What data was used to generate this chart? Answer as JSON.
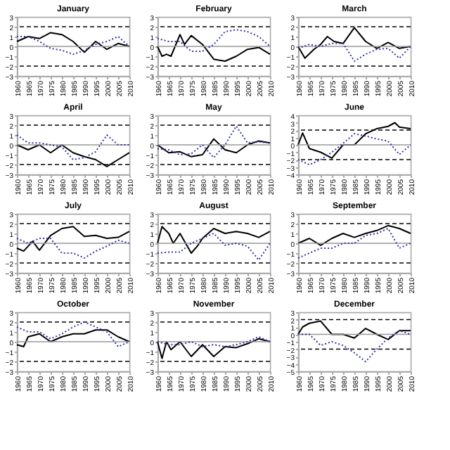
{
  "chart_data": [
    {
      "type": "line",
      "title": "January",
      "xlim": [
        1960,
        2010
      ],
      "xticks": [
        1960,
        1965,
        1970,
        1975,
        1980,
        1985,
        1990,
        1995,
        2000,
        2005,
        2010
      ],
      "ylim": [
        -3,
        3
      ],
      "yticks": [
        -3,
        -2,
        -1,
        0,
        1,
        2,
        3
      ],
      "grid": false,
      "legend": false,
      "ref_lines": [
        {
          "axis": "y",
          "value": 2,
          "color": "#000000",
          "line_style": "dashed"
        },
        {
          "axis": "y",
          "value": -2,
          "color": "#000000",
          "line_style": "dashed"
        },
        {
          "axis": "y",
          "value": 0,
          "color": "#999999",
          "line_style": "solid"
        }
      ],
      "series": [
        {
          "color": "#000000",
          "line_style": "solid",
          "x": [
            1960,
            1965,
            1970,
            1975,
            1980,
            1985,
            1990,
            1995,
            2000,
            2005,
            2010
          ],
          "values": [
            0.5,
            1,
            0.8,
            1.4,
            1.2,
            0.5,
            -0.6,
            0.5,
            -0.3,
            0.3,
            0
          ]
        },
        {
          "color": "#3333aa",
          "line_style": "dotted",
          "x": [
            1960,
            1965,
            1970,
            1975,
            1980,
            1985,
            1990,
            1995,
            2000,
            2005,
            2010
          ],
          "values": [
            1,
            1,
            0.5,
            -0.2,
            -0.4,
            -0.8,
            -0.4,
            0.2,
            0.5,
            1,
            0
          ]
        }
      ]
    },
    {
      "type": "line",
      "title": "February",
      "xlim": [
        1960,
        2010
      ],
      "xticks": [
        1960,
        1965,
        1970,
        1975,
        1980,
        1985,
        1990,
        1995,
        2000,
        2005,
        2010
      ],
      "ylim": [
        -3,
        3
      ],
      "yticks": [
        -3,
        -2,
        -1,
        0,
        1,
        2,
        3
      ],
      "grid": false,
      "legend": false,
      "ref_lines": [
        {
          "axis": "y",
          "value": 2,
          "color": "#000000",
          "line_style": "dashed"
        },
        {
          "axis": "y",
          "value": -2,
          "color": "#000000",
          "line_style": "dashed"
        },
        {
          "axis": "y",
          "value": 0,
          "color": "#999999",
          "line_style": "solid"
        }
      ],
      "series": [
        {
          "color": "#000000",
          "line_style": "solid",
          "x": [
            1960,
            1962,
            1964,
            1966,
            1970,
            1972,
            1975,
            1980,
            1985,
            1990,
            1995,
            2000,
            2005,
            2010
          ],
          "values": [
            0,
            -1,
            -0.8,
            -1,
            1.2,
            0.2,
            1.1,
            0.2,
            -1.3,
            -1.5,
            -1,
            -0.3,
            -0.1,
            -0.8
          ]
        },
        {
          "color": "#3333aa",
          "line_style": "dotted",
          "x": [
            1960,
            1965,
            1970,
            1975,
            1980,
            1985,
            1990,
            1995,
            2000,
            2005,
            2010
          ],
          "values": [
            0.8,
            0.5,
            0.5,
            -0.5,
            -0.5,
            0.2,
            1.5,
            1.7,
            1.5,
            1,
            0
          ]
        }
      ]
    },
    {
      "type": "line",
      "title": "March",
      "xlim": [
        1960,
        2010
      ],
      "xticks": [
        1960,
        1965,
        1970,
        1975,
        1980,
        1985,
        1990,
        1995,
        2000,
        2005,
        2010
      ],
      "ylim": [
        -3,
        3
      ],
      "yticks": [
        -3,
        -2,
        -1,
        0,
        1,
        2,
        3
      ],
      "grid": false,
      "legend": false,
      "ref_lines": [
        {
          "axis": "y",
          "value": 2,
          "color": "#000000",
          "line_style": "dashed"
        },
        {
          "axis": "y",
          "value": -2,
          "color": "#000000",
          "line_style": "dashed"
        },
        {
          "axis": "y",
          "value": 0,
          "color": "#999999",
          "line_style": "solid"
        }
      ],
      "series": [
        {
          "color": "#000000",
          "line_style": "solid",
          "x": [
            1960,
            1963,
            1967,
            1970,
            1973,
            1976,
            1980,
            1985,
            1990,
            1995,
            2000,
            2005,
            2010
          ],
          "values": [
            0,
            -1.2,
            -0.3,
            0.2,
            1,
            0.5,
            0.3,
            1.9,
            0.5,
            -0.2,
            0.4,
            -0.2,
            0
          ]
        },
        {
          "color": "#3333aa",
          "line_style": "dotted",
          "x": [
            1960,
            1965,
            1970,
            1975,
            1980,
            1985,
            1990,
            1995,
            2000,
            2005,
            2010
          ],
          "values": [
            -0.2,
            0.2,
            0,
            0.3,
            0.3,
            -1.5,
            -0.8,
            -0.3,
            -0.2,
            -1.2,
            0
          ]
        }
      ]
    },
    {
      "type": "line",
      "title": "April",
      "xlim": [
        1960,
        2010
      ],
      "xticks": [
        1960,
        1965,
        1970,
        1975,
        1980,
        1985,
        1990,
        1995,
        2000,
        2005,
        2010
      ],
      "ylim": [
        -3,
        3
      ],
      "yticks": [
        -3,
        -2,
        -1,
        0,
        1,
        2,
        3
      ],
      "grid": false,
      "legend": false,
      "ref_lines": [
        {
          "axis": "y",
          "value": 2,
          "color": "#000000",
          "line_style": "dashed"
        },
        {
          "axis": "y",
          "value": -2,
          "color": "#000000",
          "line_style": "dashed"
        },
        {
          "axis": "y",
          "value": 0,
          "color": "#999999",
          "line_style": "solid"
        }
      ],
      "series": [
        {
          "color": "#000000",
          "line_style": "solid",
          "x": [
            1960,
            1965,
            1970,
            1975,
            1980,
            1985,
            1990,
            1995,
            2000,
            2005,
            2010
          ],
          "values": [
            0,
            -0.5,
            0,
            -0.8,
            0,
            -0.8,
            -1.2,
            -1.5,
            -2.2,
            -1.5,
            -0.8
          ]
        },
        {
          "color": "#3333aa",
          "line_style": "dotted",
          "x": [
            1960,
            1965,
            1970,
            1975,
            1980,
            1985,
            1990,
            1995,
            2000,
            2005,
            2010
          ],
          "values": [
            1,
            0.2,
            0.2,
            0,
            -0.2,
            -1.5,
            -1.3,
            -0.7,
            1,
            0,
            0
          ]
        }
      ]
    },
    {
      "type": "line",
      "title": "May",
      "xlim": [
        1960,
        2010
      ],
      "xticks": [
        1960,
        1965,
        1970,
        1975,
        1980,
        1985,
        1990,
        1995,
        2000,
        2005,
        2010
      ],
      "ylim": [
        -3,
        3
      ],
      "yticks": [
        -3,
        -2,
        -1,
        0,
        1,
        2,
        3
      ],
      "grid": false,
      "legend": false,
      "ref_lines": [
        {
          "axis": "y",
          "value": 2,
          "color": "#000000",
          "line_style": "dashed"
        },
        {
          "axis": "y",
          "value": -2,
          "color": "#000000",
          "line_style": "dashed"
        },
        {
          "axis": "y",
          "value": 0,
          "color": "#999999",
          "line_style": "solid"
        }
      ],
      "series": [
        {
          "color": "#000000",
          "line_style": "solid",
          "x": [
            1960,
            1965,
            1970,
            1975,
            1980,
            1985,
            1990,
            1995,
            2000,
            2005,
            2010
          ],
          "values": [
            0,
            -0.8,
            -0.7,
            -1.2,
            -1,
            0.6,
            -0.5,
            -0.8,
            0,
            0.4,
            0.2
          ]
        },
        {
          "color": "#3333aa",
          "line_style": "dotted",
          "x": [
            1960,
            1965,
            1970,
            1975,
            1980,
            1985,
            1990,
            1995,
            2000,
            2005,
            2010
          ],
          "values": [
            -0.4,
            -0.5,
            -1,
            -0.9,
            0,
            -1.3,
            0,
            1.9,
            0.2,
            0.3,
            0.2
          ]
        }
      ]
    },
    {
      "type": "line",
      "title": "June",
      "xlim": [
        1960,
        2010
      ],
      "xticks": [
        1960,
        1965,
        1970,
        1975,
        1980,
        1985,
        1990,
        1995,
        2000,
        2005,
        2010
      ],
      "ylim": [
        -4,
        4
      ],
      "yticks": [
        -4,
        -3,
        -2,
        -1,
        0,
        1,
        2,
        3,
        4
      ],
      "grid": false,
      "legend": false,
      "ref_lines": [
        {
          "axis": "y",
          "value": 2,
          "color": "#000000",
          "line_style": "dashed"
        },
        {
          "axis": "y",
          "value": -2,
          "color": "#000000",
          "line_style": "dashed"
        },
        {
          "axis": "y",
          "value": 0,
          "color": "#999999",
          "line_style": "solid"
        }
      ],
      "series": [
        {
          "color": "#000000",
          "line_style": "solid",
          "x": [
            1960,
            1962,
            1965,
            1970,
            1975,
            1980,
            1985,
            1990,
            1995,
            2000,
            2003,
            2005,
            2010
          ],
          "values": [
            0,
            1.6,
            -0.5,
            -1,
            -1.8,
            0,
            0,
            1.5,
            2.2,
            2.5,
            3,
            2.4,
            2.2
          ]
        },
        {
          "color": "#3333aa",
          "line_style": "dotted",
          "x": [
            1960,
            1965,
            1970,
            1975,
            1980,
            1985,
            1990,
            1995,
            2000,
            2005,
            2010
          ],
          "values": [
            -2,
            -2.7,
            -2,
            -1,
            0.2,
            1.5,
            1.2,
            0.8,
            0.5,
            -1.3,
            0
          ]
        }
      ]
    },
    {
      "type": "line",
      "title": "July",
      "xlim": [
        1960,
        2010
      ],
      "xticks": [
        1960,
        1965,
        1970,
        1975,
        1980,
        1985,
        1990,
        1995,
        2000,
        2005,
        2010
      ],
      "ylim": [
        -3,
        3
      ],
      "yticks": [
        -3,
        -2,
        -1,
        0,
        1,
        2,
        3
      ],
      "grid": false,
      "legend": false,
      "ref_lines": [
        {
          "axis": "y",
          "value": 2,
          "color": "#000000",
          "line_style": "dashed"
        },
        {
          "axis": "y",
          "value": -2,
          "color": "#000000",
          "line_style": "dashed"
        },
        {
          "axis": "y",
          "value": 0,
          "color": "#999999",
          "line_style": "solid"
        }
      ],
      "series": [
        {
          "color": "#000000",
          "line_style": "solid",
          "x": [
            1960,
            1963,
            1967,
            1970,
            1975,
            1980,
            1985,
            1990,
            1995,
            2000,
            2005,
            2010
          ],
          "values": [
            -0.5,
            -0.8,
            0.2,
            -0.7,
            0.8,
            1.5,
            1.7,
            0.7,
            0.8,
            0.5,
            0.6,
            1.2
          ]
        },
        {
          "color": "#3333aa",
          "line_style": "dotted",
          "x": [
            1960,
            1965,
            1970,
            1975,
            1980,
            1985,
            1990,
            1995,
            2000,
            2005,
            2010
          ],
          "values": [
            0.5,
            0,
            0.5,
            0.5,
            -1,
            -1,
            -1.5,
            -0.8,
            -0.3,
            0.3,
            0
          ]
        }
      ]
    },
    {
      "type": "line",
      "title": "August",
      "xlim": [
        1960,
        2010
      ],
      "xticks": [
        1960,
        1965,
        1970,
        1975,
        1980,
        1985,
        1990,
        1995,
        2000,
        2005,
        2010
      ],
      "ylim": [
        -3,
        3
      ],
      "yticks": [
        -3,
        -2,
        -1,
        0,
        1,
        2,
        3
      ],
      "grid": false,
      "legend": false,
      "ref_lines": [
        {
          "axis": "y",
          "value": 2,
          "color": "#000000",
          "line_style": "dashed"
        },
        {
          "axis": "y",
          "value": -2,
          "color": "#000000",
          "line_style": "dashed"
        },
        {
          "axis": "y",
          "value": 0,
          "color": "#999999",
          "line_style": "solid"
        }
      ],
      "series": [
        {
          "color": "#000000",
          "line_style": "solid",
          "x": [
            1960,
            1962,
            1965,
            1967,
            1970,
            1975,
            1978,
            1980,
            1985,
            1990,
            1995,
            2000,
            2005,
            2010
          ],
          "values": [
            0,
            1.7,
            1,
            0,
            1,
            -1,
            -0.2,
            0.5,
            1.5,
            1,
            1.2,
            1,
            0.6,
            1.2
          ]
        },
        {
          "color": "#3333aa",
          "line_style": "dotted",
          "x": [
            1960,
            1965,
            1970,
            1975,
            1980,
            1985,
            1990,
            1995,
            2000,
            2005,
            2010
          ],
          "values": [
            -1,
            -0.9,
            -0.9,
            0,
            0.5,
            1,
            -0.2,
            0,
            -0.3,
            -1.7,
            0
          ]
        }
      ]
    },
    {
      "type": "line",
      "title": "September",
      "xlim": [
        1960,
        2010
      ],
      "xticks": [
        1960,
        1965,
        1970,
        1975,
        1980,
        1985,
        1990,
        1995,
        2000,
        2005,
        2010
      ],
      "ylim": [
        -3,
        3
      ],
      "yticks": [
        -3,
        -2,
        -1,
        0,
        1,
        2,
        3
      ],
      "grid": false,
      "legend": false,
      "ref_lines": [
        {
          "axis": "y",
          "value": 2,
          "color": "#000000",
          "line_style": "dashed"
        },
        {
          "axis": "y",
          "value": -2,
          "color": "#000000",
          "line_style": "dashed"
        },
        {
          "axis": "y",
          "value": 0,
          "color": "#999999",
          "line_style": "solid"
        }
      ],
      "series": [
        {
          "color": "#000000",
          "line_style": "solid",
          "x": [
            1960,
            1965,
            1970,
            1975,
            1980,
            1985,
            1990,
            1995,
            2000,
            2005,
            2010
          ],
          "values": [
            0,
            0.5,
            -0.2,
            0.5,
            1,
            0.6,
            1,
            1.3,
            1.8,
            1.5,
            1
          ]
        },
        {
          "color": "#3333aa",
          "line_style": "dotted",
          "x": [
            1960,
            1965,
            1970,
            1975,
            1980,
            1985,
            1990,
            1995,
            2000,
            2005,
            2010
          ],
          "values": [
            -1.5,
            -1,
            -0.5,
            -0.5,
            0,
            0,
            0.8,
            1,
            1.5,
            -0.5,
            0
          ]
        }
      ]
    },
    {
      "type": "line",
      "title": "October",
      "xlim": [
        1960,
        2010
      ],
      "xticks": [
        1960,
        1965,
        1970,
        1975,
        1980,
        1985,
        1990,
        1995,
        2000,
        2005,
        2010
      ],
      "ylim": [
        -3,
        3
      ],
      "yticks": [
        -3,
        -2,
        -1,
        0,
        1,
        2,
        3
      ],
      "grid": false,
      "legend": false,
      "ref_lines": [
        {
          "axis": "y",
          "value": 2,
          "color": "#000000",
          "line_style": "dashed"
        },
        {
          "axis": "y",
          "value": -2,
          "color": "#000000",
          "line_style": "dashed"
        },
        {
          "axis": "y",
          "value": 0,
          "color": "#999999",
          "line_style": "solid"
        }
      ],
      "series": [
        {
          "color": "#000000",
          "line_style": "solid",
          "x": [
            1960,
            1963,
            1965,
            1970,
            1975,
            1980,
            1985,
            1990,
            1995,
            2000,
            2005,
            2010
          ],
          "values": [
            -0.3,
            -0.5,
            0.5,
            0.8,
            0,
            0.5,
            0.8,
            0.8,
            1.2,
            1.2,
            0.5,
            0
          ]
        },
        {
          "color": "#3333aa",
          "line_style": "dotted",
          "x": [
            1960,
            1965,
            1970,
            1975,
            1980,
            1985,
            1990,
            1995,
            2000,
            2005,
            2010
          ],
          "values": [
            1.5,
            1,
            1,
            0.3,
            0.8,
            1.5,
            2,
            1.5,
            1,
            -0.5,
            0
          ]
        }
      ]
    },
    {
      "type": "line",
      "title": "November",
      "xlim": [
        1960,
        2010
      ],
      "xticks": [
        1960,
        1965,
        1970,
        1975,
        1980,
        1985,
        1990,
        1995,
        2000,
        2005,
        2010
      ],
      "ylim": [
        -3,
        3
      ],
      "yticks": [
        -3,
        -2,
        -1,
        0,
        1,
        2,
        3
      ],
      "grid": false,
      "legend": false,
      "ref_lines": [
        {
          "axis": "y",
          "value": 2,
          "color": "#000000",
          "line_style": "dashed"
        },
        {
          "axis": "y",
          "value": -2,
          "color": "#000000",
          "line_style": "dashed"
        },
        {
          "axis": "y",
          "value": 0,
          "color": "#999999",
          "line_style": "solid"
        }
      ],
      "series": [
        {
          "color": "#000000",
          "line_style": "solid",
          "x": [
            1960,
            1962,
            1964,
            1966,
            1970,
            1975,
            1980,
            1985,
            1990,
            1995,
            2000,
            2005,
            2010
          ],
          "values": [
            0,
            -1.7,
            0,
            -0.8,
            0,
            -1.5,
            -0.3,
            -1.5,
            -0.5,
            -0.6,
            -0.2,
            0.3,
            0
          ]
        },
        {
          "color": "#3333aa",
          "line_style": "dotted",
          "x": [
            1960,
            1965,
            1970,
            1975,
            1980,
            1985,
            1990,
            1995,
            2000,
            2005,
            2010
          ],
          "values": [
            0,
            -0.3,
            -0.3,
            0,
            -0.5,
            -0.3,
            -0.5,
            -0.3,
            0,
            0.5,
            0
          ]
        }
      ]
    },
    {
      "type": "line",
      "title": "December",
      "xlim": [
        1960,
        2010
      ],
      "xticks": [
        1960,
        1965,
        1970,
        1975,
        1980,
        1985,
        1990,
        1995,
        2000,
        2005,
        2010
      ],
      "ylim": [
        -5,
        3
      ],
      "yticks": [
        -5,
        -4,
        -3,
        -2,
        -1,
        0,
        1,
        2,
        3
      ],
      "grid": false,
      "legend": false,
      "ref_lines": [
        {
          "axis": "y",
          "value": 2,
          "color": "#000000",
          "line_style": "dashed"
        },
        {
          "axis": "y",
          "value": -2,
          "color": "#000000",
          "line_style": "dashed"
        },
        {
          "axis": "y",
          "value": 0,
          "color": "#999999",
          "line_style": "solid"
        }
      ],
      "series": [
        {
          "color": "#000000",
          "line_style": "solid",
          "x": [
            1960,
            1962,
            1965,
            1970,
            1975,
            1980,
            1985,
            1990,
            1995,
            2000,
            2005,
            2010
          ],
          "values": [
            0,
            1,
            1.5,
            1.8,
            0,
            0,
            -0.5,
            0.8,
            0,
            -0.7,
            0.5,
            0.5
          ]
        },
        {
          "color": "#3333aa",
          "line_style": "dotted",
          "x": [
            1960,
            1965,
            1970,
            1975,
            1980,
            1985,
            1990,
            1995,
            2000,
            2005,
            2010
          ],
          "values": [
            0,
            0,
            -1.5,
            -1,
            -1.5,
            -2.5,
            -3.7,
            -2,
            -0.5,
            0.5,
            0
          ]
        }
      ]
    }
  ]
}
